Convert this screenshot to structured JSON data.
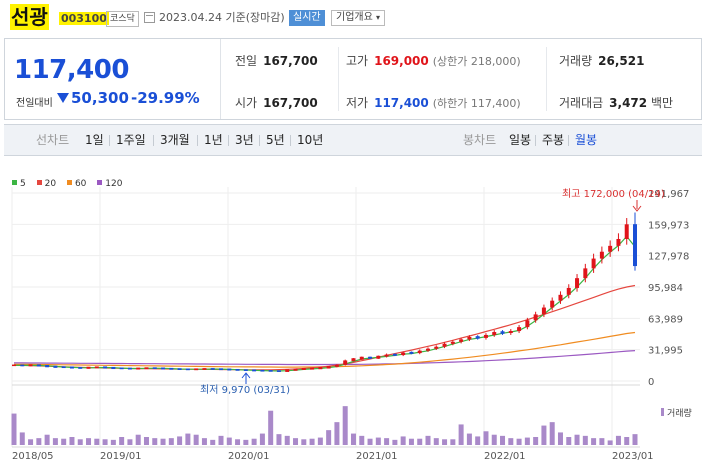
{
  "header": {
    "title": "선광",
    "code": "003100",
    "market": "코스닥",
    "date": "2023.04.24 기준(장마감)",
    "realtime": "실시간",
    "company_info": "기업개요"
  },
  "quote": {
    "price": "117,400",
    "change_label": "전일대비",
    "change": "50,300",
    "change_pct": "-29.99%",
    "prev_close_label": "전일",
    "prev_close": "167,700",
    "high_label": "고가",
    "high": "169,000",
    "upper_limit": "(상한가 218,000)",
    "volume_label": "거래량",
    "volume": "26,521",
    "open_label": "시가",
    "open": "167,700",
    "low_label": "저가",
    "low": "117,400",
    "lower_limit": "(하한가 117,400)",
    "value_label": "거래대금",
    "value": "3,472",
    "value_unit": "백만"
  },
  "tabs": {
    "line_chart": "선차트",
    "periods": [
      "1일",
      "1주일",
      "3개월",
      "1년",
      "3년",
      "5년",
      "10년"
    ],
    "candle_chart": "봉차트",
    "candles": [
      "일봉",
      "주봉",
      "월봉"
    ],
    "active_candle": "월봉"
  },
  "colors": {
    "up": "#e0141a",
    "down": "#1a4fd6",
    "ma5": "#3cb544",
    "ma20": "#e5473f",
    "ma60": "#f08c21",
    "ma120": "#9b59c2",
    "volume": "#a989c9"
  },
  "chart_data": {
    "type": "candlestick",
    "legend": [
      {
        "name": "5",
        "color": "#3cb544"
      },
      {
        "name": "20",
        "color": "#e5473f"
      },
      {
        "name": "60",
        "color": "#f08c21"
      },
      {
        "name": "120",
        "color": "#9b59c2"
      }
    ],
    "y_ticks": [
      "191,967",
      "159,973",
      "127,978",
      "95,984",
      "63,989",
      "31,995",
      "0"
    ],
    "x_ticks": [
      "2018/05",
      "2019/01",
      "2020/01",
      "2021/01",
      "2022/01",
      "2023/01"
    ],
    "ylim": [
      0,
      191967
    ],
    "high_annotation": "최고 172,000 (04/24)",
    "low_annotation": "최저 9,970 (03/31)",
    "volume_label": "거래량",
    "closes": [
      16000,
      15800,
      16200,
      15600,
      14800,
      14200,
      14000,
      13500,
      13200,
      13800,
      14100,
      13600,
      13000,
      12800,
      12500,
      12900,
      13200,
      13000,
      12600,
      12300,
      12000,
      11800,
      12100,
      12400,
      12200,
      11900,
      11500,
      11200,
      11000,
      10600,
      10400,
      10200,
      10000,
      11200,
      12000,
      12400,
      12800,
      13500,
      14500,
      16500,
      21000,
      22500,
      24000,
      23500,
      25000,
      27000,
      26500,
      29000,
      28500,
      31000,
      33000,
      35000,
      38000,
      40000,
      42500,
      45000,
      44000,
      47000,
      50000,
      49000,
      51000,
      55000,
      62000,
      68000,
      75000,
      82000,
      88000,
      95000,
      105000,
      115000,
      125000,
      132000,
      138000,
      145000,
      160000,
      117400
    ],
    "volumes": [
      55,
      22,
      10,
      12,
      18,
      12,
      11,
      14,
      10,
      12,
      11,
      10,
      9,
      14,
      10,
      18,
      14,
      12,
      11,
      12,
      15,
      20,
      18,
      12,
      9,
      16,
      13,
      10,
      9,
      11,
      20,
      60,
      19,
      16,
      12,
      10,
      11,
      13,
      26,
      40,
      68,
      20,
      16,
      11,
      13,
      12,
      9,
      15,
      11,
      11,
      16,
      12,
      10,
      10,
      36,
      20,
      15,
      24,
      18,
      16,
      12,
      11,
      13,
      14,
      34,
      40,
      22,
      14,
      18,
      16,
      12,
      12,
      8,
      16,
      14,
      19
    ],
    "ma20": [
      16000,
      15900,
      15700,
      15400,
      15100,
      14800,
      14500,
      14200,
      13900,
      13700,
      13500,
      13300,
      13100,
      12950,
      12800,
      12700,
      12600,
      12500,
      12400,
      12300,
      12200,
      12100,
      12000,
      11900,
      11800,
      11700,
      11600,
      11500,
      11400,
      11300,
      11300,
      11400,
      11600,
      11900,
      12300,
      12800,
      13400,
      14200,
      15100,
      16200,
      17500,
      19000,
      20700,
      22500,
      24300,
      26200,
      28000,
      29800,
      31600,
      33500,
      35400,
      37400,
      39500,
      41600,
      43800,
      46000,
      48200,
      50500,
      52800,
      55100,
      57500,
      60000,
      62600,
      65300,
      68000,
      70800,
      73600,
      76500,
      79400,
      82400,
      85400,
      88400,
      91300,
      93800,
      96000,
      97500
    ],
    "ma60": [
      17000,
      16950,
      16900,
      16800,
      16700,
      16600,
      16500,
      16400,
      16300,
      16200,
      16100,
      16000,
      15900,
      15800,
      15700,
      15600,
      15500,
      15400,
      15300,
      15200,
      15100,
      15000,
      14900,
      14800,
      14700,
      14600,
      14500,
      14450,
      14400,
      14350,
      14300,
      14250,
      14200,
      14200,
      14200,
      14250,
      14300,
      14400,
      14500,
      14700,
      14900,
      15200,
      15500,
      15900,
      16300,
      16800,
      17300,
      17900,
      18500,
      19200,
      19900,
      20700,
      21500,
      22400,
      23300,
      24200,
      25200,
      26200,
      27300,
      28400,
      29500,
      30700,
      31900,
      33100,
      34400,
      35700,
      37000,
      38400,
      39800,
      41200,
      42600,
      44000,
      45500,
      47000,
      48500,
      49500
    ],
    "ma120": [
      18500,
      18450,
      18400,
      18350,
      18300,
      18250,
      18200,
      18150,
      18100,
      18050,
      18000,
      17950,
      17900,
      17850,
      17800,
      17750,
      17700,
      17650,
      17600,
      17550,
      17500,
      17450,
      17400,
      17350,
      17300,
      17250,
      17200,
      17150,
      17100,
      17050,
      17000,
      16950,
      16900,
      16850,
      16800,
      16800,
      16800,
      16800,
      16850,
      16900,
      16950,
      17000,
      17100,
      17200,
      17300,
      17450,
      17600,
      17800,
      18000,
      18200,
      18450,
      18700,
      19000,
      19300,
      19600,
      19950,
      20300,
      20700,
      21100,
      21550,
      22000,
      22500,
      23000,
      23500,
      24050,
      24600,
      25200,
      25800,
      26400,
      27050,
      27700,
      28400,
      29100,
      29800,
      30500,
      31000
    ]
  }
}
